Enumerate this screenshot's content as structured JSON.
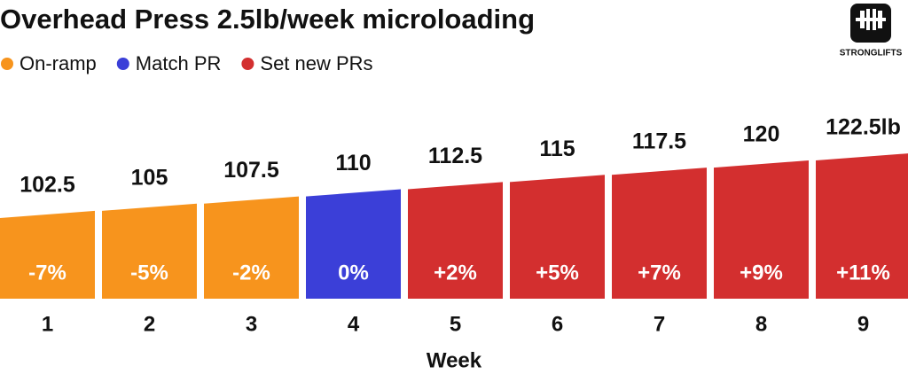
{
  "chart_data": {
    "type": "bar",
    "title": "Overhead Press 2.5lb/week microloading",
    "logo_text": "STRONGLIFTS",
    "x_label": "Week",
    "categories": [
      "1",
      "2",
      "3",
      "4",
      "5",
      "6",
      "7",
      "8",
      "9"
    ],
    "series": [
      {
        "name": "On-ramp",
        "color": "#f7941d",
        "values": [
          102.5,
          105,
          107.5,
          null,
          null,
          null,
          null,
          null,
          null
        ],
        "change_labels": [
          "-7%",
          "-5%",
          "-2%",
          null,
          null,
          null,
          null,
          null,
          null
        ]
      },
      {
        "name": "Match PR",
        "color": "#3b3fd8",
        "values": [
          null,
          null,
          null,
          110,
          null,
          null,
          null,
          null,
          null
        ],
        "change_labels": [
          null,
          null,
          null,
          "0%",
          null,
          null,
          null,
          null,
          null
        ]
      },
      {
        "name": "Set new PRs",
        "color": "#d32f2f",
        "values": [
          null,
          null,
          null,
          null,
          112.5,
          115,
          117.5,
          120,
          122.5
        ],
        "value_labels": [
          null,
          null,
          null,
          null,
          "112.5",
          "115",
          "117.5",
          "120",
          "122.5lb"
        ],
        "change_labels": [
          null,
          null,
          null,
          null,
          "+2%",
          "+5%",
          "+7%",
          "+9%",
          "+11%"
        ]
      }
    ],
    "ylim": [
      72,
      132
    ]
  }
}
